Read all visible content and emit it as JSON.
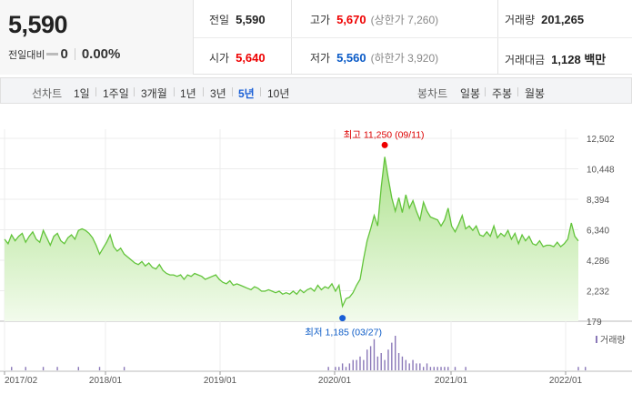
{
  "quote": {
    "price": "5,590",
    "change_label": "전일대비",
    "change_value": "0",
    "change_pct": "0.00%"
  },
  "stats": {
    "prev_close_label": "전일",
    "prev_close": "5,590",
    "open_label": "시가",
    "open": "5,640",
    "high_label": "고가",
    "high": "5,670",
    "upper_limit": "(상한가 7,260)",
    "low_label": "저가",
    "low": "5,560",
    "lower_limit": "(하한가 3,920)",
    "volume_label": "거래량",
    "volume": "201,265",
    "amount_label": "거래대금",
    "amount": "1,128 백만"
  },
  "toolbar": {
    "line_chart_label": "선차트",
    "periods": [
      "1일",
      "1주일",
      "3개월",
      "1년",
      "3년",
      "5년",
      "10년"
    ],
    "active_period": "5년",
    "candle_chart_label": "봉차트",
    "candle_periods": [
      "일봉",
      "주봉",
      "월봉"
    ]
  },
  "colors": {
    "up": "#e00000",
    "down": "#0b5bc7",
    "line": "#62c43a",
    "fill": "#d8f1c8",
    "volume": "#8a78b8"
  },
  "chart_data": {
    "type": "area",
    "x_ticks": [
      "2017/02",
      "2018/01",
      "2019/01",
      "2020/01",
      "2021/01",
      "2022/01"
    ],
    "y_ticks": [
      179,
      2232,
      4286,
      6340,
      8394,
      10448,
      12502
    ],
    "ylim": [
      179,
      12502
    ],
    "annotations": {
      "high_text": "최고 11,250 (09/11)",
      "low_text": "최저 1,185 (03/27)"
    },
    "volume_legend": "거래량",
    "series": [
      {
        "values": [
          5700,
          5400,
          6000,
          5600,
          5900,
          6100,
          5500,
          5900,
          6200,
          5700,
          5500,
          6300,
          5800,
          5300,
          5900,
          6100,
          5600,
          5400,
          5800,
          6000,
          5700,
          6300,
          6400,
          6300,
          6100,
          5800,
          5300,
          4700,
          5100,
          5500,
          6000,
          5200,
          4900,
          5100,
          4700,
          4500,
          4300,
          4100,
          4000,
          4200,
          3900,
          4100,
          3800,
          3700,
          4000,
          3600,
          3400,
          3300,
          3300,
          3200,
          3300,
          3000,
          3300,
          3200,
          3400,
          3300,
          3200,
          3000,
          3100,
          3200,
          3300,
          3000,
          2800,
          2700,
          2900,
          2600,
          2700,
          2600,
          2500,
          2400,
          2300,
          2500,
          2400,
          2200,
          2200,
          2300,
          2200,
          2100,
          2200,
          2000,
          2100,
          2000,
          2200,
          2000,
          2300,
          2100,
          2300,
          2400,
          2200,
          2600,
          2300,
          2500,
          2400,
          2700,
          2200,
          2600,
          1185,
          1700,
          1800,
          2100,
          2600,
          3000,
          4400,
          5600,
          6400,
          7300,
          6600,
          9200,
          11250,
          9800,
          8500,
          7600,
          8500,
          7500,
          8700,
          7800,
          8300,
          7600,
          7000,
          8200,
          7600,
          7200,
          7100,
          7000,
          6600,
          7000,
          7800,
          6600,
          6200,
          6700,
          7300,
          6400,
          6600,
          6300,
          6600,
          6000,
          5900,
          6200,
          5900,
          6600,
          5800,
          6100,
          5900,
          6300,
          5700,
          6100,
          5400,
          6000,
          5600,
          5900,
          5400,
          5300,
          5600,
          5200,
          5300,
          5300,
          5200,
          5500,
          5200,
          5400,
          5700,
          6800,
          5900,
          5590
        ]
      }
    ],
    "volume": [
      0,
      0,
      1,
      0,
      0,
      0,
      1,
      0,
      0,
      0,
      0,
      1,
      0,
      0,
      0,
      1,
      0,
      0,
      0,
      0,
      0,
      1,
      0,
      0,
      0,
      0,
      0,
      1,
      0,
      0,
      0,
      0,
      0,
      0,
      1,
      0,
      0,
      0,
      0,
      0,
      0,
      0,
      0,
      0,
      0,
      0,
      0,
      0,
      0,
      0,
      0,
      0,
      0,
      0,
      0,
      0,
      0,
      0,
      0,
      0,
      0,
      0,
      0,
      0,
      0,
      0,
      0,
      0,
      0,
      0,
      0,
      0,
      0,
      0,
      0,
      0,
      0,
      0,
      0,
      0,
      0,
      0,
      0,
      0,
      0,
      0,
      0,
      0,
      0,
      0,
      0,
      0,
      1,
      0,
      1,
      1,
      2,
      1,
      2,
      3,
      3,
      4,
      3,
      6,
      7,
      9,
      4,
      5,
      3,
      6,
      8,
      10,
      5,
      4,
      3,
      2,
      3,
      2,
      2,
      1,
      2,
      1,
      1,
      1,
      1,
      1,
      1,
      0,
      1,
      0,
      0,
      1,
      0,
      0,
      0,
      0,
      0,
      0,
      0,
      0,
      0,
      0,
      0,
      0,
      0,
      0,
      0,
      0,
      0,
      0,
      0,
      0,
      0,
      0,
      0,
      0,
      0,
      0,
      0,
      0,
      0,
      0,
      0,
      1,
      0,
      1,
      0
    ]
  }
}
